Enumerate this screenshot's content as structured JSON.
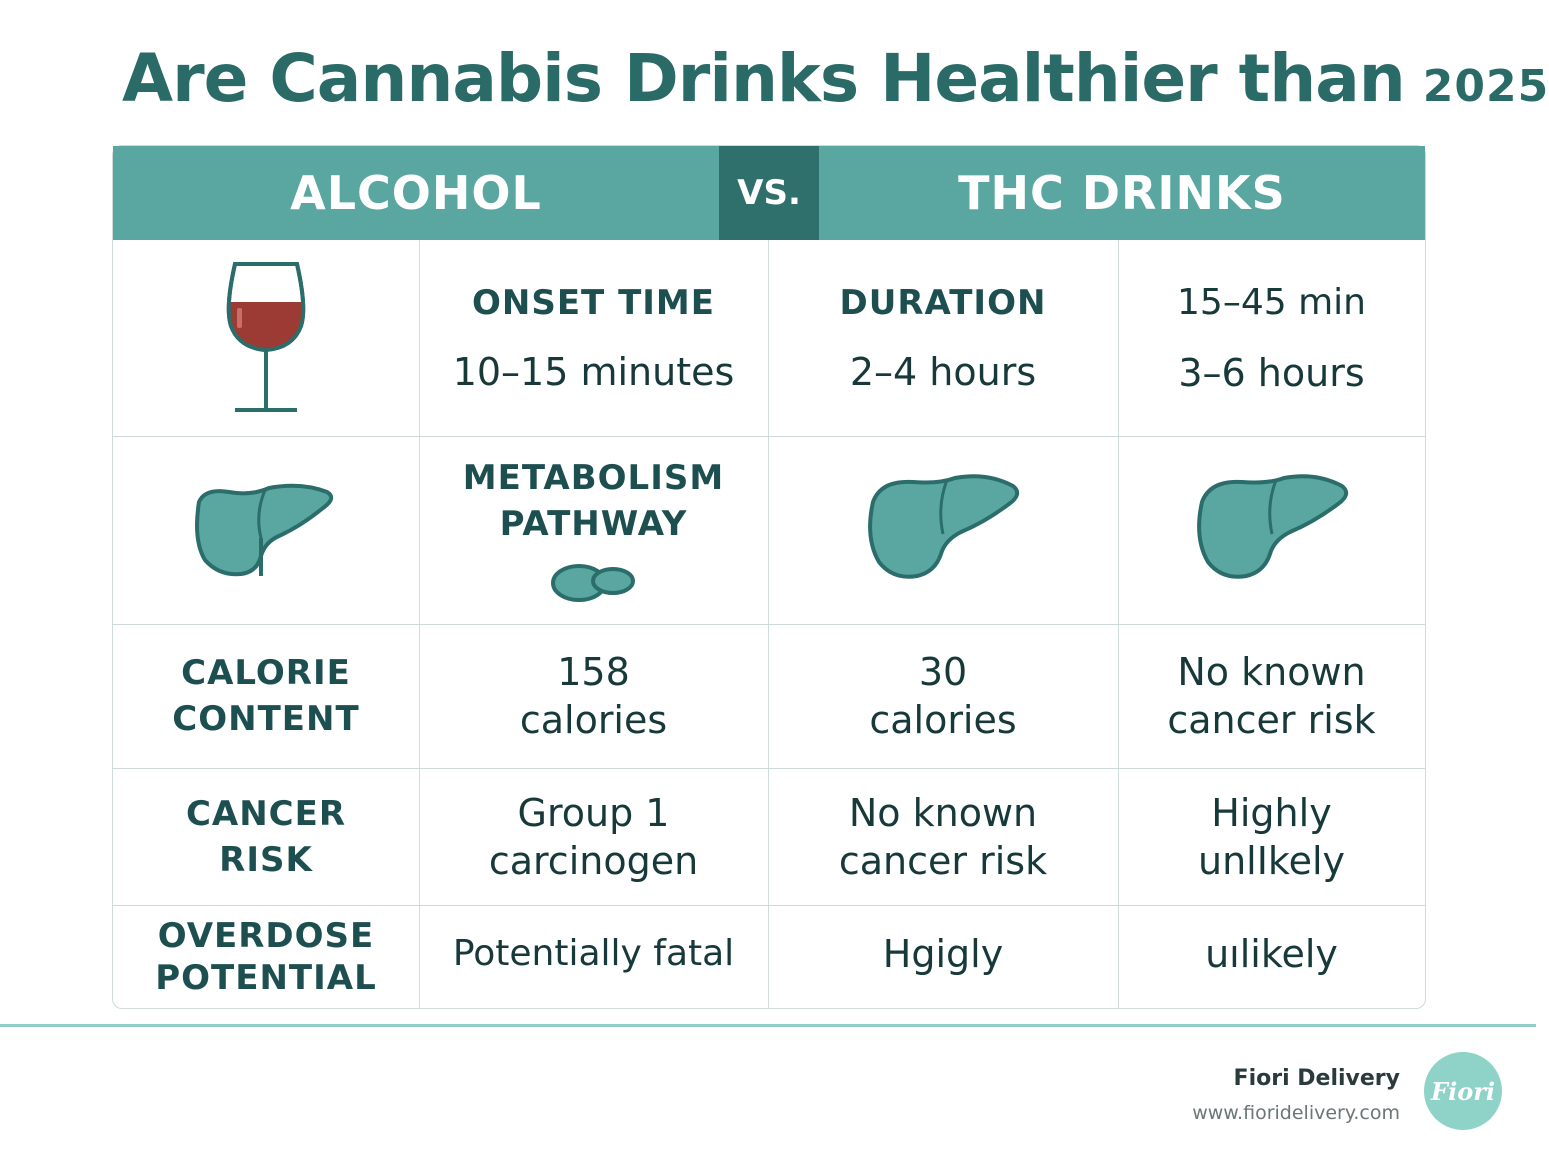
{
  "title": {
    "main": "Are Cannabis Drinks Healthier than",
    "year": "2025"
  },
  "header": {
    "left": "ALCOHOL",
    "vs": "VS.",
    "right": "THC DRINKS"
  },
  "rows": {
    "onset": {
      "c1_icon": "wine-glass-icon",
      "c2_label": "ONSET TIME",
      "c2_value": "10–15 minutes",
      "c3_label": "DURATION",
      "c3_value": "2–4 hours",
      "c4_label": "15–45 min",
      "c4_value": "3–6 hours"
    },
    "metabolism": {
      "c1_icon": "liver-icon",
      "c2_label_line1": "METABOLISM",
      "c2_label_line2": "PATHWAY",
      "c2_icon": "pill-icon",
      "c3_icon": "liver-icon",
      "c4_icon": "liver-icon"
    },
    "calorie": {
      "c1_line1": "CALORIE",
      "c1_line2": "CONTENT",
      "c2_line1": "158",
      "c2_line2": "calories",
      "c3_line1": "30",
      "c3_line2": "calories",
      "c4_line1": "No known",
      "c4_line2": "cancer risk"
    },
    "cancer": {
      "c1_line1": "CANCER",
      "c1_line2": "RISK",
      "c2_line1": "Group 1",
      "c2_line2": "carcinogen",
      "c3_line1": "No known",
      "c3_line2": "cancer risk",
      "c4_line1": "Highly",
      "c4_line2": "unlIkely"
    },
    "overdose": {
      "c1_line1": "OVERDOSE",
      "c1_line2": "POTENTIAL",
      "c2": "Potentially fatal",
      "c3": "Hgigly",
      "c4": "uılikely"
    }
  },
  "brand": {
    "name": "Fiori Delivery",
    "url": "www.fioridelivery.com",
    "logo_text": "Fiori"
  },
  "colors": {
    "teal_header": "#5aa6a0",
    "teal_dark": "#2f6f6c",
    "title": "#2a6b68",
    "wine": "#9c3a34"
  }
}
